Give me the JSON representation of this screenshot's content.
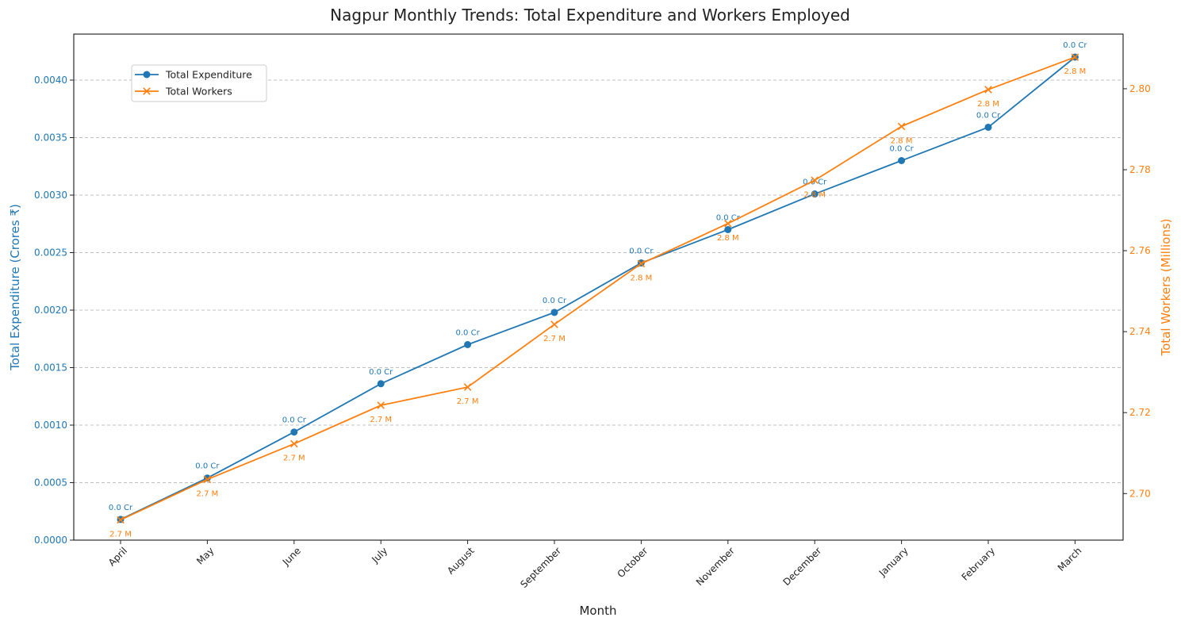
{
  "chart_data": {
    "type": "line",
    "title": "Nagpur Monthly Trends: Total Expenditure and Workers Employed",
    "xlabel": "Month",
    "categories": [
      "April",
      "May",
      "June",
      "July",
      "August",
      "September",
      "October",
      "November",
      "December",
      "January",
      "February",
      "March"
    ],
    "y_left": {
      "label": "Total Expenditure (Crores ₹)",
      "lim": [
        0.0,
        0.0044
      ],
      "ticks": [
        0.0,
        0.0005,
        0.001,
        0.0015,
        0.002,
        0.0025,
        0.003,
        0.0035,
        0.004
      ],
      "tick_labels": [
        "0.0000",
        "0.0005",
        "0.0010",
        "0.0015",
        "0.0020",
        "0.0025",
        "0.0030",
        "0.0035",
        "0.0040"
      ]
    },
    "y_right": {
      "label": "Total Workers (Millions)",
      "lim": [
        2.6885,
        2.8135
      ],
      "ticks": [
        2.7,
        2.72,
        2.74,
        2.76,
        2.78,
        2.8
      ],
      "tick_labels": [
        "2.70",
        "2.72",
        "2.74",
        "2.76",
        "2.78",
        "2.80"
      ]
    },
    "grid": "horizontal dashed",
    "legend_position": "upper-left",
    "series": [
      {
        "name": "Total Expenditure",
        "axis": "left",
        "color": "#1f77b4",
        "marker": "circle",
        "values": [
          0.00018,
          0.00054,
          0.00094,
          0.00136,
          0.0017,
          0.00198,
          0.00241,
          0.0027,
          0.00301,
          0.0033,
          0.00359,
          0.0042
        ],
        "labels": [
          "0.0 Cr",
          "0.0 Cr",
          "0.0 Cr",
          "0.0 Cr",
          "0.0 Cr",
          "0.0 Cr",
          "0.0 Cr",
          "0.0 Cr",
          "0.0 Cr",
          "0.0 Cr",
          "0.0 Cr",
          "0.0 Cr"
        ]
      },
      {
        "name": "Total Workers",
        "axis": "right",
        "color": "#ff7f0e",
        "marker": "x",
        "values": [
          2.6935,
          2.7035,
          2.7123,
          2.7218,
          2.7263,
          2.7418,
          2.7568,
          2.7667,
          2.7774,
          2.7907,
          2.7998,
          2.8078
        ],
        "labels": [
          "2.7 M",
          "2.7 M",
          "2.7 M",
          "2.7 M",
          "2.7 M",
          "2.7 M",
          "2.8 M",
          "2.8 M",
          "2.8 M",
          "2.8 M",
          "2.8 M",
          "2.8 M"
        ]
      }
    ]
  }
}
